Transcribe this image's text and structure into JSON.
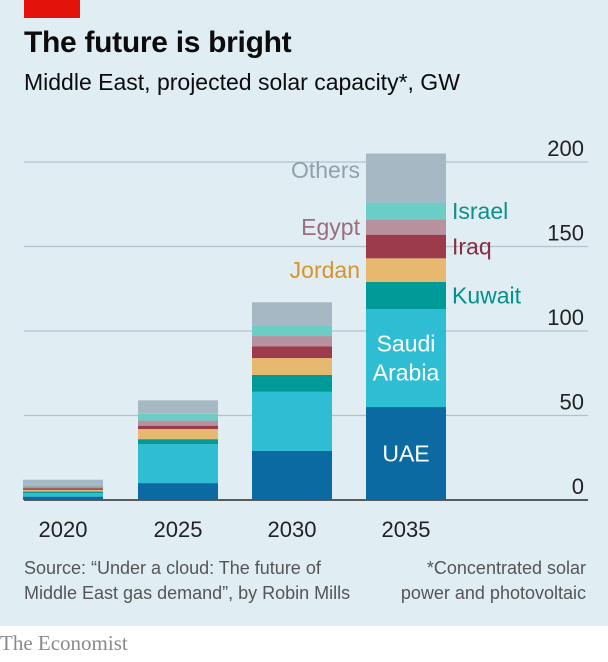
{
  "header": {
    "title": "The future is bright",
    "subtitle": "Middle East, projected solar capacity*, GW"
  },
  "footer": {
    "source_line1": "Source: “Under a cloud: The future of",
    "source_line2": "Middle East gas demand”, by Robin Mills",
    "note_line1": "*Concentrated solar",
    "note_line2": "power and photovoltaic",
    "brand": "The Economist"
  },
  "chart_data": {
    "type": "bar",
    "stacked": true,
    "title": "The future is bright",
    "subtitle": "Middle East, projected solar capacity*, GW",
    "xlabel": "",
    "ylabel": "",
    "ylim": [
      0,
      200
    ],
    "yticks": [
      0,
      50,
      100,
      150,
      200
    ],
    "grid": true,
    "categories": [
      "2020",
      "2025",
      "2030",
      "2035"
    ],
    "series": [
      {
        "name": "UAE",
        "color": "#0b6aa2",
        "values": [
          2,
          10,
          29,
          55
        ],
        "label": [
          "UAE"
        ],
        "label_color": "#ffffff"
      },
      {
        "name": "Saudi Arabia",
        "color": "#2fbdd4",
        "values": [
          2,
          23,
          35,
          58
        ],
        "label": [
          "Saudi",
          "Arabia"
        ],
        "label_color": "#ffffff"
      },
      {
        "name": "Kuwait",
        "color": "#009a98",
        "values": [
          1,
          3,
          10,
          16
        ],
        "label": [
          "Kuwait"
        ],
        "label_color": "#00908e"
      },
      {
        "name": "Jordan",
        "color": "#e6b96e",
        "values": [
          1,
          6,
          10,
          14
        ],
        "label": [
          "Jordan"
        ],
        "label_color": "#d9932b"
      },
      {
        "name": "Iraq",
        "color": "#9b3b4b",
        "values": [
          1,
          2,
          7,
          14
        ],
        "label": [
          "Iraq"
        ],
        "label_color": "#8a2c40"
      },
      {
        "name": "Egypt",
        "color": "#b7929e",
        "values": [
          1,
          3,
          6,
          9
        ],
        "label": [
          "Egypt"
        ],
        "label_color": "#9b6e7d"
      },
      {
        "name": "Israel",
        "color": "#6ccdc7",
        "values": [
          1,
          4,
          6,
          10
        ],
        "label": [
          "Israel"
        ],
        "label_color": "#0f8f8c"
      },
      {
        "name": "Others",
        "color": "#a7b8c5",
        "values": [
          3,
          8,
          14,
          29
        ],
        "label": [
          "Others"
        ],
        "label_color": "#8fa1b0"
      }
    ],
    "totals": [
      12,
      59,
      117,
      205
    ]
  }
}
